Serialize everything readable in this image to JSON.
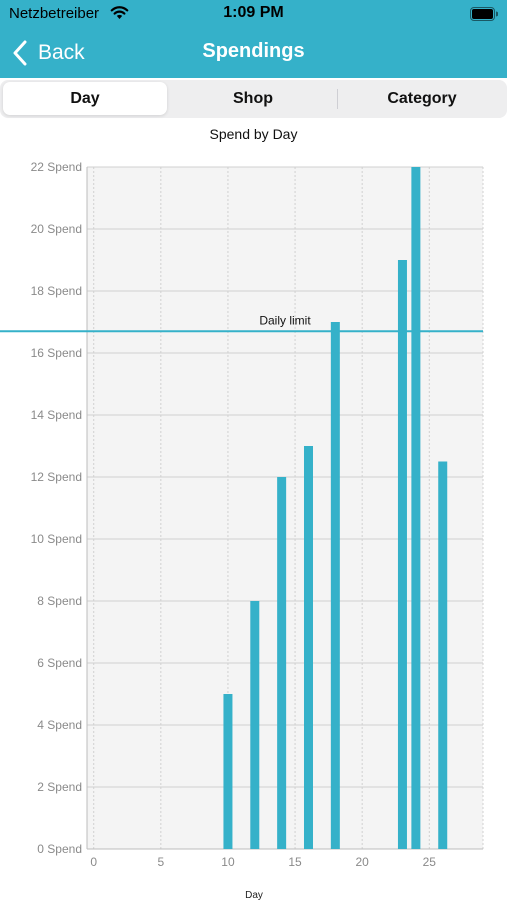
{
  "status_bar": {
    "carrier": "Netzbetreiber",
    "time": "1:09 PM",
    "wifi_icon": "wifi-icon",
    "battery_icon": "battery-icon"
  },
  "nav": {
    "back_label": "Back",
    "back_icon": "chevron-left-icon",
    "title": "Spendings"
  },
  "segments": [
    {
      "label": "Day",
      "selected": true
    },
    {
      "label": "Shop",
      "selected": false
    },
    {
      "label": "Category",
      "selected": false
    }
  ],
  "colors": {
    "accent": "#35b1c9",
    "bar": "#35b1c9",
    "plot_background": "#f4f4f4",
    "gridline": "#d0d0d0",
    "tick_text": "#8a8a8a"
  },
  "chart_data": {
    "type": "bar",
    "title": "Spend by Day",
    "xlabel": "Day",
    "ylabel": "",
    "xlim": [
      -0.5,
      29
    ],
    "ylim": [
      0,
      22
    ],
    "x_ticks": [
      0,
      5,
      10,
      15,
      20,
      25
    ],
    "y_ticks": [
      0,
      2,
      4,
      6,
      8,
      10,
      12,
      14,
      16,
      18,
      20,
      22
    ],
    "y_tick_suffix": " Spend",
    "x": [
      10,
      12,
      14,
      16,
      18,
      23,
      24,
      26
    ],
    "values": [
      5,
      8,
      12,
      13,
      17,
      19,
      22,
      12.5
    ],
    "reference_line": {
      "label": "Daily limit",
      "value": 16.7
    },
    "grid": true,
    "legend": "none"
  }
}
